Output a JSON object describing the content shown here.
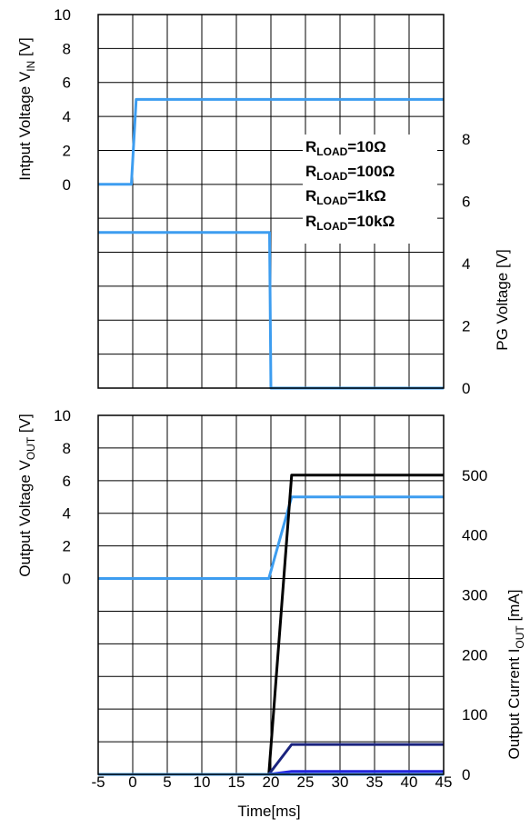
{
  "chart_data": [
    {
      "type": "line",
      "panel": "top",
      "time_axis_ms": [
        -5,
        45
      ],
      "left_axis": {
        "label_main": "Intput Voltage V",
        "label_sub": "IN",
        "label_unit": " [V]",
        "ylim": [
          -12,
          10
        ],
        "ticks": [
          10,
          8,
          6,
          4,
          2,
          0
        ]
      },
      "right_axis": {
        "label": "PG Voltage [V]",
        "ylim": [
          0,
          12
        ],
        "ticks": [
          8,
          6,
          4,
          2,
          0
        ]
      },
      "legend": [
        {
          "prefix": "R",
          "sub": "LOAD",
          "suffix": "=10Ω",
          "color": "#000000"
        },
        {
          "prefix": "R",
          "sub": "LOAD",
          "suffix": "=100Ω",
          "color": "#1a237e"
        },
        {
          "prefix": "R",
          "sub": "LOAD",
          "suffix": "=1kΩ",
          "color": "#2323dc"
        },
        {
          "prefix": "R",
          "sub": "LOAD",
          "suffix": "=10kΩ",
          "color": "#3d9df0"
        }
      ],
      "legend_placement": "right",
      "grid": true,
      "series": [
        {
          "axis": "left",
          "color": "#3d9df0",
          "x": [
            -5,
            -0.2,
            0.5,
            45
          ],
          "y": [
            0,
            0,
            5,
            5
          ]
        },
        {
          "axis": "right",
          "color": "#3d9df0",
          "x": [
            -5,
            19.8,
            20.0,
            45
          ],
          "y": [
            5,
            5,
            0,
            0
          ]
        }
      ]
    },
    {
      "type": "line",
      "panel": "bottom",
      "xlabel": "Time[ms]",
      "xticks": [
        -5,
        0,
        5,
        10,
        15,
        20,
        25,
        30,
        35,
        40,
        45
      ],
      "xlim": [
        -5,
        45
      ],
      "left_axis": {
        "label_main": "Output Voltage V",
        "label_sub": "OUT",
        "label_unit": " [V]",
        "ylim": [
          -12,
          10
        ],
        "ticks": [
          10,
          8,
          6,
          4,
          2,
          0
        ]
      },
      "right_axis": {
        "label_main": "Output Current I",
        "label_sub": "OUT",
        "label_unit": " [mA]",
        "ylim": [
          0,
          600
        ],
        "ticks": [
          500,
          400,
          300,
          200,
          100,
          0
        ]
      },
      "grid": true,
      "series": [
        {
          "axis": "left",
          "color": "#3d9df0",
          "x": [
            -5,
            19.7,
            23.0,
            45
          ],
          "y": [
            0,
            0,
            5,
            5
          ]
        },
        {
          "axis": "right",
          "color": "#000000",
          "x": [
            -5,
            19.7,
            23.0,
            45
          ],
          "y": [
            0,
            0,
            500,
            500
          ]
        },
        {
          "axis": "right",
          "color": "#1a237e",
          "x": [
            -5,
            19.7,
            23.0,
            45
          ],
          "y": [
            0,
            0,
            50,
            50
          ]
        },
        {
          "axis": "right",
          "color": "#2323dc",
          "x": [
            -5,
            19.7,
            23.0,
            45
          ],
          "y": [
            0,
            0,
            5,
            5
          ]
        },
        {
          "axis": "right",
          "color": "#3d9df0",
          "x": [
            -5,
            45
          ],
          "y": [
            0,
            0
          ]
        }
      ]
    }
  ]
}
